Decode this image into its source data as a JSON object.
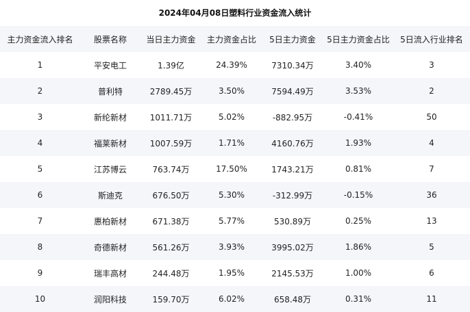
{
  "title": "2024年04月08日塑料行业资金流入统计",
  "headers": [
    "主力资金流入排名",
    "股票名称",
    "当日主力资金",
    "主力资金占比",
    "5日主力资金",
    "5日主力资金占比",
    "5日流入行业排名"
  ],
  "rows": [
    [
      "1",
      "平安电工",
      "1.39亿",
      "24.39%",
      "7310.34万",
      "3.40%",
      "3"
    ],
    [
      "2",
      "普利特",
      "2789.45万",
      "3.50%",
      "7594.49万",
      "3.53%",
      "2"
    ],
    [
      "3",
      "新纶新材",
      "1011.71万",
      "5.02%",
      "-882.95万",
      "-0.41%",
      "50"
    ],
    [
      "4",
      "福莱新材",
      "1007.59万",
      "1.71%",
      "4160.76万",
      "1.93%",
      "4"
    ],
    [
      "5",
      "江苏博云",
      "763.74万",
      "17.50%",
      "1743.21万",
      "0.81%",
      "7"
    ],
    [
      "6",
      "斯迪克",
      "676.50万",
      "5.30%",
      "-312.99万",
      "-0.15%",
      "36"
    ],
    [
      "7",
      "惠柏新材",
      "671.38万",
      "5.77%",
      "530.89万",
      "0.25%",
      "13"
    ],
    [
      "8",
      "奇德新材",
      "561.26万",
      "3.93%",
      "3995.02万",
      "1.86%",
      "5"
    ],
    [
      "9",
      "瑞丰高材",
      "244.48万",
      "1.95%",
      "2145.53万",
      "1.00%",
      "6"
    ],
    [
      "10",
      "润阳科技",
      "159.70万",
      "6.02%",
      "658.48万",
      "0.31%",
      "11"
    ]
  ]
}
